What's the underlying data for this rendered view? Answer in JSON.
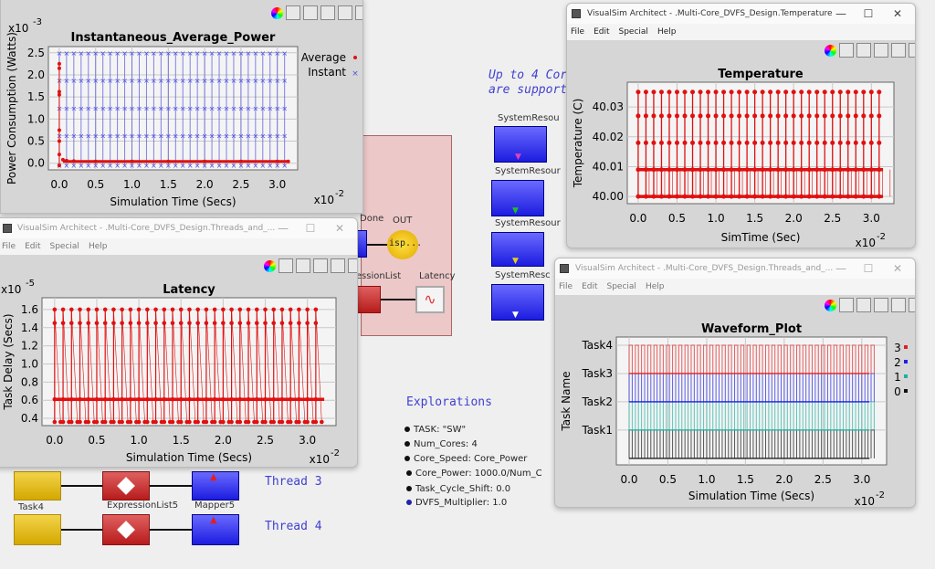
{
  "canvas": {
    "note_line1": "Up to 4 Cor",
    "note_line2": "are support",
    "system_resources": [
      "SystemResou",
      "SystemResour",
      "SystemResour",
      "SystemResc"
    ],
    "system_resource_marker_colors": [
      "#e040c0",
      "#20c020",
      "#e0d020",
      "#ffffff"
    ],
    "done_label": "Done",
    "out_label": "OUT",
    "display_text": "isp...",
    "expression_list_label": "ressionList",
    "latency_label": "Latency",
    "task4_label": "Task4",
    "expression_list5_label": "ExpressionList5",
    "mapper5_label": "Mapper5",
    "thread3": "Thread 3",
    "thread4": "Thread 4",
    "explorations_title": "Explorations",
    "explorations": [
      "TASK: \"SW\"",
      "Num_Cores: 4",
      "Core_Speed: Core_Power",
      "Core_Power: 1000.0/Num_C",
      "Task_Cycle_Shift: 0.0",
      "DVFS_Multiplier: 1.0"
    ]
  },
  "windows": {
    "latency": {
      "title": "VisualSim Architect - .Multi-Core_DVFS_Design.Threads_and_...",
      "menu": [
        "File",
        "Edit",
        "Special",
        "Help"
      ]
    },
    "temperature": {
      "title": "VisualSim Architect - .Multi-Core_DVFS_Design.Temperature",
      "menu": [
        "File",
        "Edit",
        "Special",
        "Help"
      ]
    },
    "waveform": {
      "title": "VisualSim Architect - .Multi-Core_DVFS_Design.Threads_and_...",
      "menu": [
        "File",
        "Edit",
        "Special",
        "Help"
      ]
    },
    "controls": {
      "minimize": "—",
      "maximize": "☐",
      "close": "✕"
    }
  },
  "chart_data": [
    {
      "id": "power",
      "type": "scatter",
      "title": "Instantaneous_Average_Power",
      "xlabel": "Simulation Time (Secs)",
      "ylabel": "Power Consumption (Watts)",
      "x_multiplier": "x10",
      "x_exp": "-2",
      "y_multiplier": "x10",
      "y_exp": "-3",
      "xticks": [
        "0.0",
        "0.5",
        "1.0",
        "1.5",
        "2.0",
        "2.5",
        "3.0"
      ],
      "yticks": [
        "0.0",
        "0.5",
        "1.0",
        "1.5",
        "2.0",
        "2.5"
      ],
      "xlim": [
        -0.15,
        3.28
      ],
      "ylim": [
        -0.15,
        2.64
      ],
      "grid": true,
      "legend": "right",
      "series": [
        {
          "name": "Average",
          "color": "#e01010",
          "marker": "dot",
          "x": [
            0.0,
            0.0,
            0.0,
            0.0,
            0.0,
            0.0,
            0.0,
            0.0,
            0.05,
            0.1,
            0.2,
            0.5,
            1.0,
            1.5,
            2.0,
            2.5,
            3.0,
            3.15
          ],
          "values": [
            2.25,
            2.15,
            1.62,
            1.55,
            0.75,
            0.5,
            0.2,
            -0.05,
            0.08,
            0.06,
            0.05,
            0.04,
            0.04,
            0.04,
            0.04,
            0.04,
            0.04,
            0.04
          ],
          "fill_line": 0.04
        },
        {
          "name": "Instant",
          "color": "#5050e0",
          "marker": "x",
          "x": [
            0.0,
            0.1,
            0.2,
            0.3,
            0.4,
            0.5,
            0.6,
            0.7,
            0.8,
            0.9,
            1.0,
            1.1,
            1.2,
            1.3,
            1.4,
            1.5,
            1.6,
            1.7,
            1.8,
            1.9,
            2.0,
            2.1,
            2.2,
            2.3,
            2.4,
            2.5,
            2.6,
            2.7,
            2.8,
            2.9,
            3.0,
            3.1
          ],
          "levels": [
            2.5,
            1.88,
            1.25,
            0.62,
            -0.05
          ]
        }
      ]
    },
    {
      "id": "latency",
      "type": "line",
      "title": "Latency",
      "xlabel": "Simulation Time (Secs)",
      "ylabel": "Task Delay (Secs)",
      "x_multiplier": "x10",
      "x_exp": "-2",
      "y_multiplier": "x10",
      "y_exp": "-5",
      "xticks": [
        "0.0",
        "0.5",
        "1.0",
        "1.5",
        "2.0",
        "2.5",
        "3.0"
      ],
      "yticks": [
        "0.4",
        "0.6",
        "0.8",
        "1.0",
        "1.2",
        "1.4",
        "1.6"
      ],
      "xlim": [
        -0.15,
        3.34
      ],
      "ylim": [
        0.32,
        1.73
      ],
      "grid": true,
      "series": [
        {
          "color": "#e01010",
          "x": [
            0.0,
            0.1,
            0.2,
            0.3,
            0.4,
            0.5,
            0.6,
            0.7,
            0.8,
            0.9,
            1.0,
            1.1,
            1.2,
            1.3,
            1.4,
            1.5,
            1.6,
            1.7,
            1.8,
            1.9,
            2.0,
            2.1,
            2.2,
            2.3,
            2.4,
            2.5,
            2.6,
            2.7,
            2.8,
            2.9,
            3.0,
            3.1
          ],
          "levels": [
            1.6,
            1.45,
            0.61,
            0.36
          ]
        }
      ]
    },
    {
      "id": "temperature",
      "type": "scatter",
      "title": "Temperature",
      "xlabel": "SimTime (Sec)",
      "ylabel": "Temperature (C)",
      "x_multiplier": "x10",
      "x_exp": "-2",
      "xticks": [
        "0.0",
        "0.5",
        "1.0",
        "1.5",
        "2.0",
        "2.5",
        "3.0"
      ],
      "yticks": [
        "40.00",
        "40.01",
        "40.02",
        "40.03"
      ],
      "xlim": [
        -0.14,
        3.29
      ],
      "ylim": [
        39.9976,
        40.0383
      ],
      "grid": true,
      "series": [
        {
          "color": "#e01010",
          "x": [
            0.0,
            0.1,
            0.2,
            0.3,
            0.4,
            0.5,
            0.6,
            0.7,
            0.8,
            0.9,
            1.0,
            1.1,
            1.2,
            1.3,
            1.4,
            1.5,
            1.6,
            1.7,
            1.8,
            1.9,
            2.0,
            2.1,
            2.2,
            2.3,
            2.4,
            2.5,
            2.6,
            2.7,
            2.8,
            2.9,
            3.0,
            3.1
          ],
          "levels": [
            40.035,
            40.027,
            40.018,
            40.009,
            40.0
          ]
        }
      ]
    },
    {
      "id": "waveform",
      "type": "line",
      "title": "Waveform_Plot",
      "xlabel": "Simulation Time (Secs)",
      "ylabel": "Task Name",
      "x_multiplier": "x10",
      "x_exp": "-2",
      "xticks": [
        "0.0",
        "0.5",
        "1.0",
        "1.5",
        "2.0",
        "2.5",
        "3.0"
      ],
      "yticks": [
        "Task1",
        "Task2",
        "Task3",
        "Task4"
      ],
      "xlim": [
        -0.165,
        3.32
      ],
      "ylim": [
        -0.23,
        4.29
      ],
      "grid": true,
      "legend": "right",
      "pulse_x": [
        0.0,
        0.08,
        0.16,
        0.24,
        0.32,
        0.4,
        0.48,
        0.56,
        0.64,
        0.72,
        0.8,
        0.88,
        0.96,
        1.04,
        1.12,
        1.2,
        1.28,
        1.36,
        1.44,
        1.52,
        1.6,
        1.68,
        1.76,
        1.84,
        1.92,
        2.0,
        2.08,
        2.16,
        2.24,
        2.32,
        2.4,
        2.48,
        2.56,
        2.64,
        2.72,
        2.8,
        2.88,
        2.96,
        3.04,
        3.12
      ],
      "pulse_width": 0.04,
      "series": [
        {
          "name": "3",
          "color": "#e02020",
          "low": 3,
          "high": 4
        },
        {
          "name": "2",
          "color": "#2020e0",
          "low": 2,
          "high": 3
        },
        {
          "name": "1",
          "color": "#20b0a0",
          "low": 1,
          "high": 2
        },
        {
          "name": "0",
          "color": "#111111",
          "low": 0,
          "high": 1
        }
      ]
    }
  ]
}
